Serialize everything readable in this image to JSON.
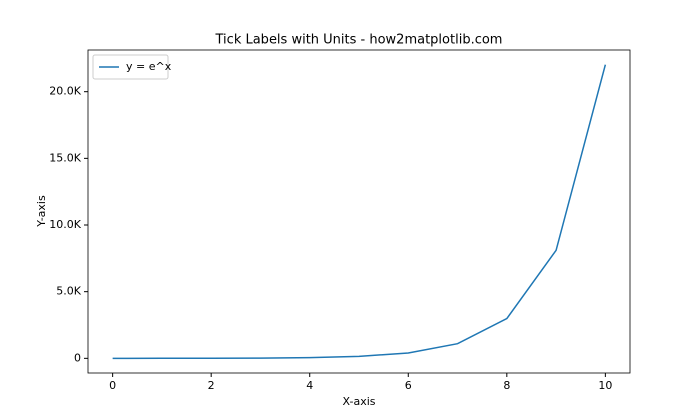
{
  "chart_data": {
    "type": "line",
    "title": "Tick Labels with Units - how2matplotlib.com",
    "xlabel": "X-axis",
    "ylabel": "Y-axis",
    "x": [
      0,
      1,
      2,
      3,
      4,
      5,
      6,
      7,
      8,
      9,
      10
    ],
    "series": [
      {
        "name": "y = e^x",
        "color": "#1f77b4",
        "values": [
          1,
          2.718,
          7.389,
          20.09,
          54.6,
          148.4,
          403.4,
          1096.6,
          2981,
          8103,
          22026
        ]
      }
    ],
    "xlim": [
      -0.5,
      10.5
    ],
    "ylim": [
      -1100,
      23127
    ],
    "xticks": [
      0,
      2,
      4,
      6,
      8,
      10
    ],
    "yticks": [
      0,
      {
        "value": 5000,
        "label": "5.0K"
      },
      {
        "value": 10000,
        "label": "10.0K"
      },
      {
        "value": 15000,
        "label": "15.0K"
      },
      {
        "value": 20000,
        "label": "20.0K"
      }
    ],
    "grid": false,
    "legend": "upper left"
  }
}
